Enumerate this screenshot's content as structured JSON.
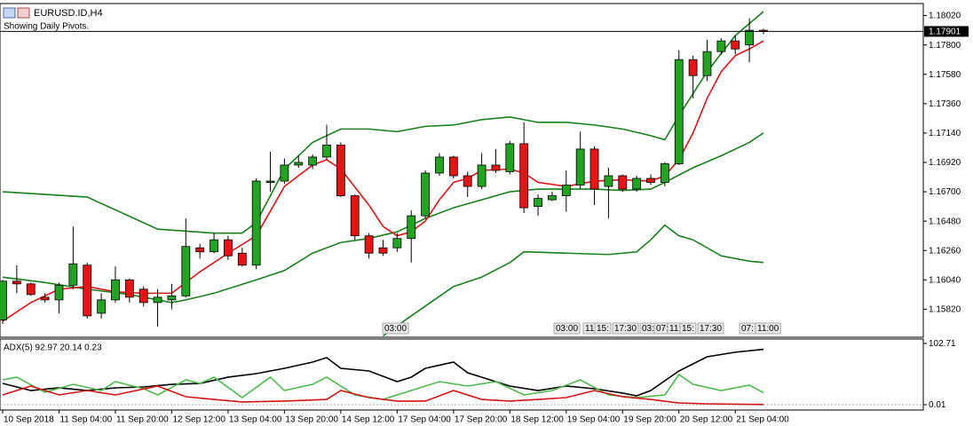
{
  "chart_data": [
    {
      "type": "candlestick",
      "title": "EURUSD.ID,H4",
      "subtitle": "Showing Daily Pivots.",
      "categories": [
        "10 Sep 2018",
        null,
        null,
        null,
        "11 Sep 04:00",
        null,
        null,
        null,
        "11 Sep 20:00",
        null,
        null,
        null,
        "12 Sep 12:00",
        null,
        null,
        null,
        "13 Sep 04:00",
        null,
        null,
        null,
        "13 Sep 20:00",
        null,
        null,
        null,
        "14 Sep 12:00",
        null,
        null,
        null,
        "17 Sep 04:00",
        null,
        null,
        null,
        "17 Sep 20:00",
        null,
        null,
        null,
        "18 Sep 12:00",
        null,
        null,
        null,
        "19 Sep 04:00",
        null,
        null,
        null,
        "19 Sep 20:00",
        null,
        null,
        null,
        "20 Sep 12:00",
        null,
        null,
        null,
        "21 Sep 04:00",
        null,
        null
      ],
      "open": [
        1.1574,
        1.1603,
        1.1601,
        1.1591,
        1.1589,
        1.16,
        1.1615,
        1.1579,
        1.1589,
        1.1604,
        1.1597,
        1.1587,
        1.1589,
        1.1592,
        1.1628,
        1.1625,
        1.1634,
        1.1624,
        1.1615,
        1.1677,
        1.1678,
        1.169,
        1.169,
        1.1696,
        1.1705,
        1.1667,
        1.1637,
        1.1628,
        1.1628,
        1.1635,
        1.1652,
        1.1684,
        1.1696,
        1.1682,
        1.1674,
        1.169,
        1.1685,
        1.1706,
        1.1659,
        1.1664,
        1.1667,
        1.1675,
        1.1702,
        1.1674,
        1.1682,
        1.1672,
        1.168,
        1.1677,
        1.1691,
        1.1769,
        1.1757,
        1.1775,
        1.1783,
        1.178,
        1.1791
      ],
      "high": [
        1.1604,
        1.1615,
        1.1602,
        1.1594,
        1.1602,
        1.1644,
        1.1617,
        1.1594,
        1.1614,
        1.1605,
        1.1599,
        1.1597,
        1.1601,
        1.165,
        1.1631,
        1.1639,
        1.1637,
        1.1628,
        1.168,
        1.17,
        1.1695,
        1.1697,
        1.1698,
        1.172,
        1.1707,
        1.1668,
        1.1639,
        1.1634,
        1.1639,
        1.1656,
        1.1686,
        1.1699,
        1.1697,
        1.1685,
        1.1699,
        1.1702,
        1.1708,
        1.1722,
        1.1668,
        1.167,
        1.1686,
        1.1715,
        1.1704,
        1.1688,
        1.1683,
        1.1682,
        1.1683,
        1.1692,
        1.1776,
        1.1772,
        1.1784,
        1.1785,
        1.1787,
        1.18,
        1.1792
      ],
      "low": [
        1.1571,
        1.1594,
        1.1592,
        1.1587,
        1.1579,
        1.1597,
        1.1575,
        1.1575,
        1.1587,
        1.1587,
        1.1584,
        1.1569,
        1.1582,
        1.1591,
        1.162,
        1.1624,
        1.1619,
        1.1614,
        1.1612,
        1.167,
        1.1676,
        1.1688,
        1.1687,
        1.1694,
        1.1666,
        1.1634,
        1.162,
        1.1622,
        1.1625,
        1.1617,
        1.165,
        1.1682,
        1.168,
        1.1666,
        1.1672,
        1.1684,
        1.1683,
        1.1654,
        1.1652,
        1.1663,
        1.1655,
        1.1672,
        1.166,
        1.165,
        1.167,
        1.167,
        1.1675,
        1.1674,
        1.169,
        1.174,
        1.1753,
        1.1773,
        1.1773,
        1.1767,
        1.1788
      ],
      "close": [
        1.1603,
        1.1601,
        1.1593,
        1.1589,
        1.16,
        1.1616,
        1.1577,
        1.1589,
        1.1604,
        1.1591,
        1.1587,
        1.1591,
        1.1592,
        1.1629,
        1.1625,
        1.1634,
        1.1622,
        1.1615,
        1.1678,
        1.1678,
        1.169,
        1.1692,
        1.1696,
        1.1705,
        1.1667,
        1.1637,
        1.1624,
        1.1624,
        1.1635,
        1.1652,
        1.1684,
        1.1696,
        1.1682,
        1.1674,
        1.169,
        1.1686,
        1.1706,
        1.1658,
        1.1665,
        1.1667,
        1.1675,
        1.1702,
        1.1672,
        1.1682,
        1.1672,
        1.168,
        1.1677,
        1.1691,
        1.1769,
        1.1757,
        1.1775,
        1.1783,
        1.1777,
        1.1791,
        1.179
      ],
      "up_color": "#22a322",
      "down_color": "#e51515",
      "series": [
        {
          "color": "#17801a",
          "x": [
            0,
            6,
            11,
            15,
            17,
            18,
            20,
            22,
            24,
            26,
            28,
            30,
            32,
            34,
            36,
            38,
            40,
            42,
            44,
            46,
            47,
            48,
            50,
            52,
            54
          ],
          "values": [
            1.167,
            1.1666,
            1.1642,
            1.1639,
            1.1639,
            1.1647,
            1.1687,
            1.1707,
            1.1717,
            1.1717,
            1.1715,
            1.1719,
            1.172,
            1.1724,
            1.1726,
            1.1722,
            1.1722,
            1.172,
            1.1717,
            1.1712,
            1.1709,
            1.1727,
            1.176,
            1.1787,
            1.1805
          ]
        },
        {
          "color": "#17801a",
          "x": [
            0,
            3,
            6,
            9,
            12,
            13,
            15,
            18,
            20,
            22,
            24,
            26,
            28,
            30,
            32,
            34,
            36,
            38,
            40,
            42,
            44,
            46,
            47,
            49,
            51,
            53,
            54
          ],
          "values": [
            1.1606,
            1.1602,
            1.1597,
            1.1593,
            1.1587,
            1.1589,
            1.1594,
            1.1604,
            1.1611,
            1.1624,
            1.1632,
            1.1635,
            1.164,
            1.165,
            1.1658,
            1.1664,
            1.167,
            1.1672,
            1.1672,
            1.1672,
            1.1671,
            1.1672,
            1.1677,
            1.1688,
            1.1697,
            1.1707,
            1.1714
          ]
        },
        {
          "color": "#17801a",
          "x": [
            27,
            29,
            32,
            34,
            36,
            37,
            40,
            43,
            45,
            46,
            47,
            48,
            49,
            51,
            53,
            54
          ],
          "values": [
            1.1562,
            1.1577,
            1.1599,
            1.1606,
            1.1617,
            1.1625,
            1.1624,
            1.1623,
            1.1625,
            1.1634,
            1.1645,
            1.1637,
            1.1634,
            1.1622,
            1.1618,
            1.1617
          ]
        },
        {
          "color": "#e01414",
          "x": [
            0,
            2,
            4,
            6,
            8,
            10,
            12,
            14,
            16,
            18,
            20,
            22,
            23,
            24,
            26,
            27,
            28,
            29,
            30,
            31,
            32,
            33,
            34,
            36,
            37,
            38,
            40,
            42,
            44,
            46,
            47,
            48,
            49,
            50,
            51,
            52,
            53,
            54
          ],
          "values": [
            1.1573,
            1.1587,
            1.1597,
            1.1599,
            1.1595,
            1.1594,
            1.1594,
            1.161,
            1.1624,
            1.1637,
            1.1674,
            1.169,
            1.1694,
            1.1687,
            1.166,
            1.1644,
            1.1637,
            1.164,
            1.1648,
            1.1664,
            1.1677,
            1.168,
            1.1686,
            1.1687,
            1.1684,
            1.1677,
            1.1674,
            1.1678,
            1.1679,
            1.1678,
            1.1682,
            1.1694,
            1.1714,
            1.174,
            1.176,
            1.1772,
            1.1777,
            1.1783
          ]
        }
      ],
      "current_price": 1.17901,
      "annotations": [
        "03:00",
        "03:00",
        "11:",
        "15:",
        "17:30",
        "03:",
        "07:",
        "11:",
        "15:",
        "17:30",
        "07:",
        "11:00"
      ],
      "ylim": [
        1.1561,
        1.1811
      ],
      "yticks": [
        {
          "value": 1.1802,
          "label": "1.18020"
        },
        {
          "value": 1.178,
          "label": "1.17800"
        },
        {
          "value": 1.1758,
          "label": "1.17580"
        },
        {
          "value": 1.1736,
          "label": "1.17360"
        },
        {
          "value": 1.1714,
          "label": "1.17140"
        },
        {
          "value": 1.1692,
          "label": "1.16920"
        },
        {
          "value": 1.167,
          "label": "1.16700"
        },
        {
          "value": 1.1648,
          "label": "1.16480"
        },
        {
          "value": 1.1626,
          "label": "1.16260"
        },
        {
          "value": 1.1604,
          "label": "1.16040"
        },
        {
          "value": 1.1582,
          "label": "1.15820"
        }
      ]
    },
    {
      "type": "line",
      "title": "ADX(5) 92.97 20.14 0.23",
      "series": [
        {
          "color": "#000000",
          "x": [
            0,
            2,
            4,
            6,
            8,
            10,
            12,
            14,
            16,
            18,
            20,
            22,
            23,
            24,
            26,
            28,
            29,
            30,
            32,
            33,
            36,
            38,
            40,
            42,
            44,
            45,
            46,
            48,
            50,
            52,
            54
          ],
          "values": [
            35.7,
            23.8,
            28.3,
            23.8,
            28.3,
            29.8,
            34.2,
            35.7,
            46.2,
            52.1,
            61.0,
            71.5,
            78.9,
            61.0,
            56.6,
            38.7,
            46.2,
            61.0,
            71.5,
            53.6,
            31.3,
            23.8,
            31.3,
            26.8,
            19.4,
            14.9,
            23.8,
            56.6,
            80.4,
            88.0,
            92.97
          ]
        },
        {
          "color": "#4cbb4c",
          "x": [
            0,
            1,
            3,
            5,
            7,
            8,
            10,
            11,
            13,
            14,
            15,
            17,
            19,
            20,
            22,
            23,
            25,
            27,
            29,
            31,
            33,
            35,
            37,
            39,
            41,
            43,
            45,
            47,
            48,
            49,
            51,
            53,
            54
          ],
          "values": [
            41.7,
            46.2,
            20.8,
            34.2,
            23.8,
            38.7,
            26.8,
            16.4,
            41.7,
            35.7,
            46.2,
            11.9,
            46.2,
            23.8,
            34.2,
            46.2,
            16.4,
            8.9,
            23.8,
            38.7,
            31.3,
            38.7,
            16.4,
            23.8,
            41.7,
            16.4,
            11.9,
            16.4,
            50.6,
            34.2,
            23.8,
            32.8,
            20.14
          ]
        },
        {
          "color": "#d41414",
          "x": [
            0,
            2,
            4,
            6,
            8,
            11,
            13,
            15,
            17,
            20,
            23,
            24,
            26,
            28,
            30,
            32,
            34,
            36,
            38,
            40,
            42,
            44,
            46,
            48,
            50,
            54
          ],
          "values": [
            16.4,
            31.3,
            16.4,
            23.8,
            16.4,
            31.3,
            13.4,
            8.9,
            4.5,
            6.0,
            8.9,
            23.8,
            11.9,
            6.0,
            6.0,
            23.8,
            8.9,
            6.0,
            8.9,
            11.9,
            23.8,
            13.4,
            8.9,
            3.0,
            1.5,
            0.23
          ]
        }
      ],
      "ylim": [
        0.01,
        102.71
      ],
      "yticks": [
        102.71,
        0.01
      ]
    }
  ]
}
